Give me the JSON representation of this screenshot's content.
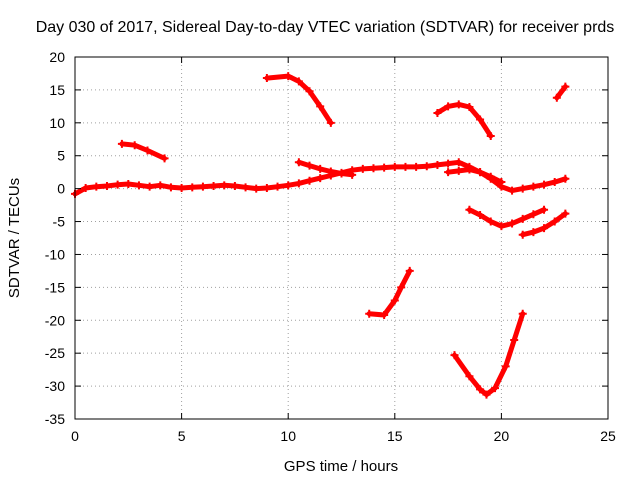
{
  "chart_data": {
    "type": "scatter",
    "title": "Day 030 of 2017, Sidereal Day-to-day VTEC variation (SDTVAR) for receiver prds",
    "xlabel": "GPS time / hours",
    "ylabel": "SDTVAR / TECUs",
    "xlim": [
      0,
      25
    ],
    "ylim": [
      -35,
      20
    ],
    "xticks": [
      "0",
      "5",
      "10",
      "15",
      "20",
      "25"
    ],
    "yticks": [
      "20",
      "15",
      "10",
      "5",
      "0",
      "-5",
      "-10",
      "-15",
      "-20",
      "-25",
      "-30",
      "-35"
    ],
    "grid": true,
    "legend": "none",
    "marker_color": "#ff0000",
    "marker": "plus",
    "series": [
      {
        "x": [
          0.0,
          0.5,
          1.0,
          1.5,
          2.0,
          2.5,
          3.0,
          3.5,
          4.0,
          4.5,
          5.0,
          5.5,
          6.0,
          6.5,
          7.0,
          7.5,
          8.0,
          8.5,
          9.0,
          9.5,
          10.0,
          10.5,
          11.0,
          11.5,
          12.0,
          12.5,
          13.0,
          13.5,
          14.0,
          14.5,
          15.0,
          15.5,
          16.0,
          16.5,
          17.0,
          17.5,
          18.0,
          18.5,
          19.0,
          19.5,
          20.0,
          20.5,
          21.0,
          21.5,
          22.0,
          22.5,
          23.0
        ],
        "y": [
          -0.8,
          0.1,
          0.3,
          0.4,
          0.6,
          0.7,
          0.5,
          0.3,
          0.5,
          0.2,
          0.1,
          0.2,
          0.3,
          0.4,
          0.5,
          0.4,
          0.2,
          0.0,
          0.1,
          0.3,
          0.5,
          0.8,
          1.2,
          1.6,
          2.0,
          2.4,
          2.8,
          3.0,
          3.1,
          3.2,
          3.3,
          3.3,
          3.3,
          3.4,
          3.6,
          3.8,
          4.0,
          3.3,
          2.5,
          1.5,
          0.3,
          -0.3,
          0.0,
          0.3,
          0.6,
          1.0,
          1.5
        ]
      },
      {
        "x": [
          2.2,
          2.8,
          3.4,
          4.2
        ],
        "y": [
          6.8,
          6.6,
          5.8,
          4.6
        ]
      },
      {
        "x": [
          9.0,
          10.0,
          10.5,
          11.0,
          11.5,
          12.0
        ],
        "y": [
          16.8,
          17.1,
          16.3,
          14.8,
          12.5,
          10.0
        ]
      },
      {
        "x": [
          10.5,
          11.0,
          11.5,
          12.0,
          12.5,
          13.0
        ],
        "y": [
          4.0,
          3.5,
          3.0,
          2.6,
          2.3,
          2.1
        ]
      },
      {
        "x": [
          17.0,
          17.5,
          18.0,
          18.5,
          19.0,
          19.5
        ],
        "y": [
          11.5,
          12.5,
          12.8,
          12.4,
          10.5,
          8.0
        ]
      },
      {
        "x": [
          17.5,
          18.0,
          18.5,
          19.0,
          19.5,
          20.0
        ],
        "y": [
          2.5,
          2.7,
          2.9,
          2.5,
          1.8,
          1.0
        ]
      },
      {
        "x": [
          18.5,
          19.0,
          19.5,
          20.0,
          20.5,
          21.0,
          21.5,
          22.0
        ],
        "y": [
          -3.2,
          -4.0,
          -5.0,
          -5.7,
          -5.3,
          -4.6,
          -3.9,
          -3.2
        ]
      },
      {
        "x": [
          21.0,
          21.5,
          22.0,
          22.5,
          23.0
        ],
        "y": [
          -7.0,
          -6.6,
          -6.0,
          -5.0,
          -3.8
        ]
      },
      {
        "x": [
          13.8,
          14.5,
          15.0,
          15.3,
          15.7
        ],
        "y": [
          -19.0,
          -19.2,
          -17.0,
          -15.0,
          -12.5
        ]
      },
      {
        "x": [
          17.8,
          18.5,
          19.0,
          19.3,
          19.7,
          20.2,
          20.6,
          21.0
        ],
        "y": [
          -25.3,
          -28.5,
          -30.5,
          -31.3,
          -30.3,
          -27.0,
          -23.0,
          -19.0
        ]
      },
      {
        "x": [
          22.6,
          23.0
        ],
        "y": [
          13.8,
          15.5
        ]
      }
    ]
  }
}
